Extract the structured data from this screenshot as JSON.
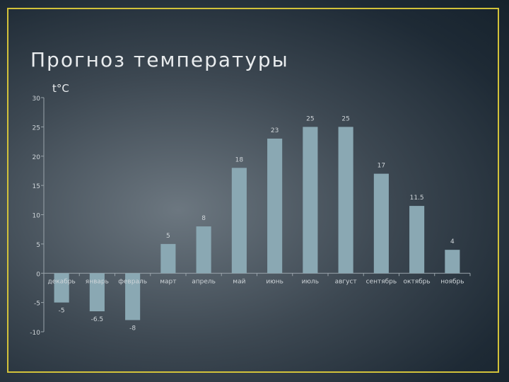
{
  "slide": {
    "title": "Прогноз температуры",
    "unit_label": "t°C"
  },
  "chart_data": {
    "type": "bar",
    "title": "Прогноз температуры",
    "ylabel": "t°C",
    "xlabel": "",
    "categories": [
      "декабрь",
      "январь",
      "февраль",
      "март",
      "апрель",
      "май",
      "июнь",
      "июль",
      "август",
      "сентябрь",
      "октябрь",
      "ноябрь"
    ],
    "values": [
      -5,
      -6.5,
      -8,
      5,
      8,
      18,
      23,
      25,
      25,
      17,
      11.5,
      4
    ],
    "data_labels": [
      "-5",
      "-6.5",
      "-8",
      "5",
      "8",
      "18",
      "23",
      "25",
      "25",
      "17",
      "11.5",
      "4"
    ],
    "ylim": [
      -10,
      30
    ],
    "yticks": [
      -10,
      -5,
      0,
      5,
      10,
      15,
      20,
      25,
      30
    ],
    "grid": false,
    "bar_color": "#8aa8b3",
    "text_color": "#cfd5d9"
  }
}
